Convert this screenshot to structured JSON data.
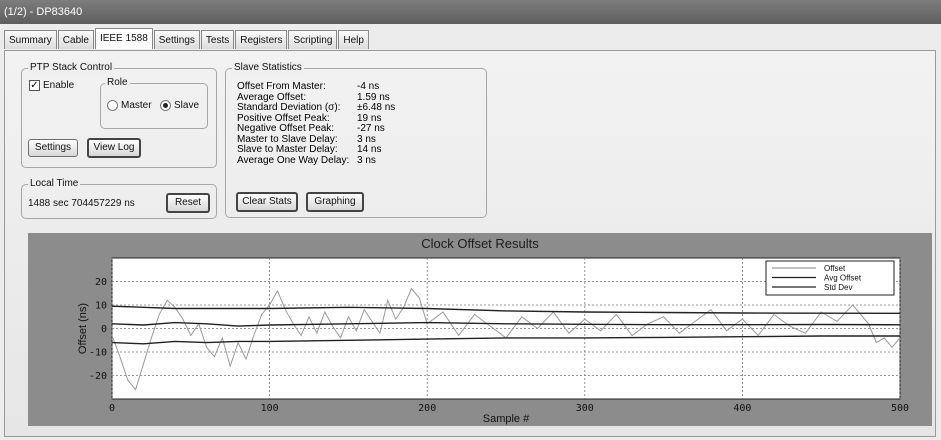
{
  "window": {
    "title": "(1/2) - DP83640"
  },
  "tabs": [
    {
      "label": "Summary",
      "active": false
    },
    {
      "label": "Cable",
      "active": false
    },
    {
      "label": "IEEE 1588",
      "active": true
    },
    {
      "label": "Settings",
      "active": false
    },
    {
      "label": "Tests",
      "active": false
    },
    {
      "label": "Registers",
      "active": false
    },
    {
      "label": "Scripting",
      "active": false
    },
    {
      "label": "Help",
      "active": false
    }
  ],
  "ptp_stack": {
    "legend": "PTP Stack Control",
    "enable_label": "Enable",
    "enable_checked": true,
    "role_legend": "Role",
    "master_label": "Master",
    "slave_label": "Slave",
    "selected_role": "Slave",
    "settings_button": "Settings",
    "view_log_button": "View Log"
  },
  "local_time": {
    "legend": "Local Time",
    "value": "1488 sec 704457229 ns",
    "reset_button": "Reset"
  },
  "slave_stats": {
    "legend": "Slave Statistics",
    "rows": [
      {
        "label": "Offset From Master:",
        "value": "-4 ns"
      },
      {
        "label": "Average Offset:",
        "value": "1.59 ns"
      },
      {
        "label": "Standard Deviation (σ):",
        "value": "±6.48 ns"
      },
      {
        "label": "Positive Offset Peak:",
        "value": "19 ns"
      },
      {
        "label": "Negative Offset Peak:",
        "value": "-27 ns"
      },
      {
        "label": "Master to Slave Delay:",
        "value": "3 ns"
      },
      {
        "label": "Slave to Master Delay:",
        "value": "14 ns"
      },
      {
        "label": "Average One Way Delay:",
        "value": "3 ns"
      }
    ],
    "clear_button": "Clear Stats",
    "graphing_button": "Graphing"
  },
  "chart_data": {
    "type": "line",
    "title": "Clock Offset Results",
    "xlabel": "Sample #",
    "ylabel": "Offset (ns)",
    "xlim": [
      0,
      500
    ],
    "ylim": [
      -30,
      30
    ],
    "x_ticks": [
      0,
      100,
      200,
      300,
      400,
      500
    ],
    "y_ticks": [
      20,
      10,
      0,
      -10,
      -20
    ],
    "grid": true,
    "legend_position": "top-right",
    "series": [
      {
        "name": "Offset",
        "color": "#9a9a9a",
        "x": [
          0,
          5,
          10,
          15,
          20,
          25,
          30,
          35,
          40,
          45,
          50,
          55,
          60,
          65,
          70,
          75,
          80,
          85,
          90,
          95,
          100,
          105,
          110,
          115,
          120,
          125,
          130,
          135,
          140,
          145,
          150,
          155,
          160,
          165,
          170,
          175,
          180,
          185,
          190,
          195,
          200,
          210,
          220,
          230,
          240,
          250,
          260,
          270,
          280,
          290,
          300,
          310,
          320,
          330,
          340,
          350,
          360,
          370,
          380,
          390,
          400,
          410,
          420,
          430,
          440,
          450,
          460,
          470,
          480,
          485,
          490,
          495,
          500
        ],
        "y": [
          -3,
          -12,
          -22,
          -26,
          -15,
          -4,
          6,
          12,
          9,
          4,
          -3,
          2,
          -8,
          -12,
          -4,
          -16,
          -6,
          -13,
          -3,
          6,
          10,
          16,
          8,
          2,
          -3,
          5,
          -2,
          7,
          1,
          -4,
          5,
          -1,
          8,
          3,
          -2,
          12,
          4,
          9,
          17,
          13,
          2,
          7,
          -3,
          6,
          1,
          -4,
          5,
          0,
          7,
          -2,
          4,
          -1,
          6,
          -3,
          2,
          5,
          -2,
          3,
          8,
          -1,
          4,
          -3,
          6,
          1,
          -2,
          7,
          3,
          10,
          2,
          -6,
          -4,
          -8,
          -4
        ]
      },
      {
        "name": "Avg Offset",
        "color": "#222222",
        "x": [
          0,
          20,
          40,
          60,
          80,
          100,
          150,
          200,
          250,
          300,
          350,
          400,
          450,
          500
        ],
        "y": [
          2,
          1.5,
          2.5,
          2,
          1,
          1.5,
          2,
          2.5,
          2,
          1.8,
          1.6,
          1.6,
          1.7,
          1.59
        ]
      },
      {
        "name": "Std Dev",
        "color": "#222222",
        "x": [
          0,
          20,
          40,
          60,
          80,
          100,
          150,
          200,
          250,
          300,
          350,
          400,
          450,
          500
        ],
        "y": [
          9.5,
          9,
          8.5,
          8.5,
          8.5,
          8.5,
          9,
          8.5,
          7.5,
          7,
          6.8,
          6.6,
          6.5,
          6.48
        ]
      },
      {
        "name": "",
        "color": "#222222",
        "x": [
          0,
          20,
          40,
          60,
          80,
          100,
          150,
          200,
          250,
          300,
          350,
          400,
          450,
          500
        ],
        "y": [
          -6,
          -6.5,
          -5.5,
          -6,
          -5.5,
          -5.5,
          -5,
          -4.5,
          -4,
          -4,
          -3.8,
          -3.5,
          -3.2,
          -3.2
        ]
      }
    ]
  }
}
